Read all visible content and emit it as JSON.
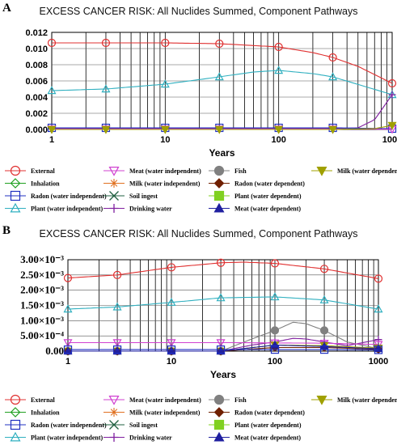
{
  "panels": [
    {
      "letter": "A",
      "title": "EXCESS CANCER RISK: All Nuclides Summed, Component Pathways"
    },
    {
      "letter": "B",
      "title": "EXCESS CANCER RISK: All Nuclides Summed, Component Pathways"
    }
  ],
  "legend_entries": [
    {
      "label": "External",
      "color": "#e03030",
      "marker": "circle"
    },
    {
      "label": "Meat (water independent)",
      "color": "#d040d0",
      "marker": "tri-down"
    },
    {
      "label": "Fish",
      "color": "#808080",
      "marker": "circle-filled"
    },
    {
      "label": "Milk (water dependent)",
      "color": "#a0a000",
      "marker": "tri-down-filled"
    },
    {
      "label": "Inhalation",
      "color": "#20a020",
      "marker": "diamond"
    },
    {
      "label": "Milk (water independent)",
      "color": "#e07020",
      "marker": "star"
    },
    {
      "label": "Radon (water dependent)",
      "color": "#702000",
      "marker": "diamond-filled"
    },
    {
      "label": "Radon (water independent)",
      "color": "#2030c0",
      "marker": "square"
    },
    {
      "label": "Soil ingest",
      "color": "#206040",
      "marker": "x"
    },
    {
      "label": "Plant (water dependent)",
      "color": "#80d020",
      "marker": "square-filled"
    },
    {
      "label": "Plant (water independent)",
      "color": "#30b0c0",
      "marker": "triangle"
    },
    {
      "label": "Drinking water",
      "color": "#8020a0",
      "marker": "plus"
    },
    {
      "label": "Meat (water dependent)",
      "color": "#2020a0",
      "marker": "tri-filled"
    }
  ],
  "chart_data": [
    {
      "type": "line",
      "title": "EXCESS CANCER RISK: All Nuclides Summed, Component Pathways",
      "xlabel": "Years",
      "ylabel": "",
      "x_scale": "log",
      "xlim": [
        1,
        1000
      ],
      "ylim": [
        0,
        0.012
      ],
      "x_tick_labels": [
        "1",
        "10",
        "100",
        "1000"
      ],
      "y_tick_labels": [
        "0.000",
        "0.002",
        "0.004",
        "0.006",
        "0.008",
        "0.010",
        "0.012"
      ],
      "y_ticks": [
        0,
        0.002,
        0.004,
        0.006,
        0.008,
        0.01,
        0.012
      ],
      "marker_x": [
        1,
        3,
        10,
        30,
        100,
        300,
        1000
      ],
      "series": [
        {
          "name": "External",
          "x": [
            1,
            3,
            10,
            30,
            100,
            200,
            300,
            500,
            1000
          ],
          "y": [
            0.0107,
            0.0107,
            0.0107,
            0.0106,
            0.0102,
            0.0095,
            0.0089,
            0.0078,
            0.0057
          ]
        },
        {
          "name": "Plant (water independent)",
          "x": [
            1,
            3,
            10,
            30,
            60,
            100,
            200,
            300,
            1000
          ],
          "y": [
            0.0048,
            0.005,
            0.0056,
            0.0065,
            0.0071,
            0.0073,
            0.0069,
            0.0065,
            0.0043
          ]
        },
        {
          "name": "Drinking water",
          "x": [
            1,
            300,
            500,
            700,
            1000
          ],
          "y": [
            0.0001,
            0.0001,
            0.0002,
            0.0012,
            0.0043
          ]
        },
        {
          "name": "Radon (water independent)",
          "x": [
            1,
            3,
            10,
            30,
            100,
            300,
            1000
          ],
          "y": [
            0.0002,
            0.0002,
            0.0002,
            0.0002,
            0.0002,
            0.0002,
            0.0001
          ]
        },
        {
          "name": "Meat (water independent)",
          "x": [
            1,
            3,
            10,
            30,
            100,
            300,
            1000
          ],
          "y": [
            5e-05,
            5e-05,
            5e-05,
            5e-05,
            5e-05,
            5e-05,
            3e-05
          ]
        },
        {
          "name": "Milk (water dependent)",
          "x": [
            1,
            300,
            700,
            1000
          ],
          "y": [
            0,
            0,
            0.0001,
            0.0005
          ]
        }
      ]
    },
    {
      "type": "line",
      "title": "EXCESS CANCER RISK: All Nuclides Summed, Component Pathways",
      "xlabel": "Years",
      "ylabel": "",
      "x_scale": "log",
      "xlim": [
        1,
        1000
      ],
      "ylim": [
        0,
        0.003
      ],
      "x_tick_labels": [
        "1",
        "10",
        "100",
        "1000"
      ],
      "y_tick_labels": [
        "0.00",
        "5.00×10⁻⁴",
        "1.00×10⁻³",
        "1.50×10⁻³",
        "2.00×10⁻³",
        "2.50×10⁻³",
        "3.00×10⁻³"
      ],
      "y_ticks": [
        0,
        0.0005,
        0.001,
        0.0015,
        0.002,
        0.0025,
        0.003
      ],
      "marker_x": [
        1,
        3,
        10,
        30,
        100,
        300,
        1000
      ],
      "series": [
        {
          "name": "External",
          "x": [
            1,
            3,
            10,
            30,
            50,
            100,
            300,
            1000
          ],
          "y": [
            0.0024,
            0.0025,
            0.00275,
            0.0029,
            0.00292,
            0.00288,
            0.0027,
            0.00238
          ]
        },
        {
          "name": "Plant (water independent)",
          "x": [
            1,
            3,
            10,
            30,
            100,
            300,
            1000
          ],
          "y": [
            0.00138,
            0.00145,
            0.0016,
            0.00175,
            0.00178,
            0.00168,
            0.00138
          ]
        },
        {
          "name": "Fish",
          "x": [
            1,
            30,
            60,
            100,
            150,
            200,
            300,
            500,
            1000
          ],
          "y": [
            0,
            0,
            0.0004,
            0.00068,
            0.00095,
            0.0009,
            0.00068,
            0.0003,
            8e-05
          ]
        },
        {
          "name": "Drinking water",
          "x": [
            1,
            30,
            60,
            100,
            150,
            200,
            300,
            500,
            1000
          ],
          "y": [
            0,
            0,
            0.0002,
            0.0003,
            0.00042,
            0.0004,
            0.0003,
            0.00018,
            0.00038
          ]
        },
        {
          "name": "Meat (water independent)",
          "x": [
            1,
            3,
            10,
            30,
            100,
            300,
            1000
          ],
          "y": [
            0.00028,
            0.00028,
            0.00028,
            0.00028,
            0.00027,
            0.00026,
            0.00022
          ]
        },
        {
          "name": "Milk (water dependent)",
          "x": [
            1,
            30,
            100,
            300,
            1000
          ],
          "y": [
            0,
            0,
            0.0002,
            0.00018,
            0.0001
          ]
        },
        {
          "name": "Radon (water dependent)",
          "x": [
            1,
            30,
            100,
            300,
            1000
          ],
          "y": [
            0,
            0,
            0.00012,
            0.00012,
            6e-05
          ]
        },
        {
          "name": "Meat (water dependent)",
          "x": [
            1,
            30,
            100,
            300,
            1000
          ],
          "y": [
            0,
            0,
            0.0002,
            0.00015,
            8e-05
          ]
        },
        {
          "name": "Radon (water independent)",
          "x": [
            1,
            3,
            10,
            30,
            100,
            300,
            1000
          ],
          "y": [
            5e-05,
            5e-05,
            5e-05,
            5e-05,
            5e-05,
            5e-05,
            4e-05
          ]
        }
      ]
    }
  ]
}
